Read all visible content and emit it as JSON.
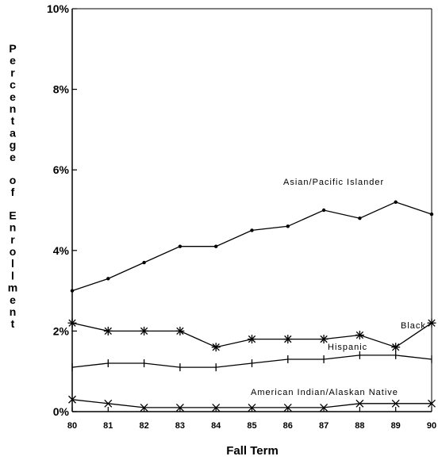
{
  "chart_data": {
    "type": "line",
    "title": "",
    "xlabel": "Fall Term",
    "ylabel": "Percentage of Enrollment",
    "categories": [
      "80",
      "81",
      "82",
      "83",
      "84",
      "85",
      "86",
      "87",
      "88",
      "89",
      "90"
    ],
    "yticks": [
      "0%",
      "2%",
      "4%",
      "6%",
      "8%",
      "10%"
    ],
    "ylim": [
      0,
      10
    ],
    "grid": false,
    "series": [
      {
        "name": "Asian/Pacific Islander",
        "marker": "dot",
        "values": [
          3.0,
          3.3,
          3.7,
          4.1,
          4.1,
          4.5,
          4.6,
          5.0,
          4.8,
          5.2,
          4.9
        ]
      },
      {
        "name": "Black",
        "marker": "asterisk",
        "values": [
          2.2,
          2.0,
          2.0,
          2.0,
          1.6,
          1.8,
          1.8,
          1.8,
          1.9,
          1.6,
          2.2
        ]
      },
      {
        "name": "Hispanic",
        "marker": "plus",
        "values": [
          1.1,
          1.2,
          1.2,
          1.1,
          1.1,
          1.2,
          1.3,
          1.3,
          1.4,
          1.4,
          1.3
        ]
      },
      {
        "name": "American Indian/Alaskan Native",
        "marker": "x",
        "values": [
          0.3,
          0.2,
          0.1,
          0.1,
          0.1,
          0.1,
          0.1,
          0.1,
          0.2,
          0.2,
          0.2
        ]
      }
    ]
  }
}
